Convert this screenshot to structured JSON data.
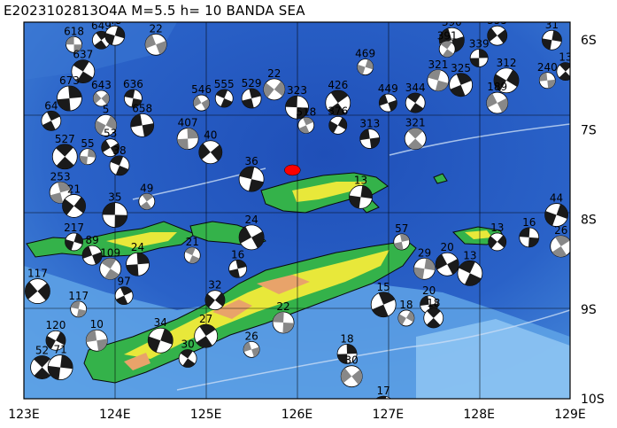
{
  "header": {
    "title": "E2023102813O4A M=5.5 h= 10 BANDA SEA"
  },
  "map": {
    "region": "BANDA SEA",
    "lon_range": [
      123,
      129
    ],
    "lat_range": [
      -10,
      -5.8
    ],
    "x_ticks": [
      {
        "lon": 123,
        "label": "123E"
      },
      {
        "lon": 124,
        "label": "124E"
      },
      {
        "lon": 125,
        "label": "125E"
      },
      {
        "lon": 126,
        "label": "126E"
      },
      {
        "lon": 127,
        "label": "127E"
      },
      {
        "lon": 128,
        "label": "128E"
      },
      {
        "lon": 129,
        "label": "129E"
      }
    ],
    "y_ticks": [
      {
        "lat": -6,
        "label": "6S"
      },
      {
        "lat": -7,
        "label": "7S"
      },
      {
        "lat": -8,
        "label": "8S"
      },
      {
        "lat": -9,
        "label": "9S"
      },
      {
        "lat": -10,
        "label": "10S"
      }
    ],
    "colors": {
      "deep_sea": "#1f4fb8",
      "mid_sea": "#3f82d8",
      "shallow_sea": "#7fb8ee",
      "land_low": "#34b24a",
      "land_mid": "#e8e83a",
      "land_high": "#e8a36a",
      "epicenter": "#ff0000"
    },
    "epicenter": {
      "lon": 125.95,
      "lat": -7.45
    },
    "mechanisms": [
      {
        "lon": 123.55,
        "lat": -6.05,
        "depth": "618"
      },
      {
        "lon": 123.85,
        "lat": -6.0,
        "depth": "649"
      },
      {
        "lon": 124.0,
        "lat": -5.95,
        "depth": "48"
      },
      {
        "lon": 124.45,
        "lat": -6.05,
        "depth": "22"
      },
      {
        "lon": 123.65,
        "lat": -6.35,
        "depth": "637"
      },
      {
        "lon": 123.5,
        "lat": -6.65,
        "depth": "673"
      },
      {
        "lon": 123.85,
        "lat": -6.65,
        "depth": "643"
      },
      {
        "lon": 124.2,
        "lat": -6.65,
        "depth": "636"
      },
      {
        "lon": 123.3,
        "lat": -6.9,
        "depth": "64"
      },
      {
        "lon": 123.9,
        "lat": -6.95,
        "depth": "5"
      },
      {
        "lon": 124.3,
        "lat": -6.95,
        "depth": "658"
      },
      {
        "lon": 123.45,
        "lat": -7.3,
        "depth": "527"
      },
      {
        "lon": 123.7,
        "lat": -7.3,
        "depth": "55"
      },
      {
        "lon": 123.95,
        "lat": -7.2,
        "depth": "53"
      },
      {
        "lon": 124.05,
        "lat": -7.4,
        "depth": "38"
      },
      {
        "lon": 123.4,
        "lat": -7.7,
        "depth": "253"
      },
      {
        "lon": 123.55,
        "lat": -7.85,
        "depth": "21"
      },
      {
        "lon": 124.0,
        "lat": -7.95,
        "depth": "35"
      },
      {
        "lon": 124.35,
        "lat": -7.8,
        "depth": "49"
      },
      {
        "lon": 123.55,
        "lat": -8.25,
        "depth": "217"
      },
      {
        "lon": 123.75,
        "lat": -8.4,
        "depth": "89"
      },
      {
        "lon": 123.95,
        "lat": -8.55,
        "depth": "109"
      },
      {
        "lon": 124.25,
        "lat": -8.5,
        "depth": "24"
      },
      {
        "lon": 123.15,
        "lat": -8.8,
        "depth": "117"
      },
      {
        "lon": 123.6,
        "lat": -9.0,
        "depth": "117"
      },
      {
        "lon": 124.1,
        "lat": -8.85,
        "depth": "97"
      },
      {
        "lon": 123.35,
        "lat": -9.35,
        "depth": "120"
      },
      {
        "lon": 123.8,
        "lat": -9.35,
        "depth": "10"
      },
      {
        "lon": 123.2,
        "lat": -9.65,
        "depth": "52"
      },
      {
        "lon": 123.4,
        "lat": -9.65,
        "depth": "71"
      },
      {
        "lon": 124.95,
        "lat": -6.7,
        "depth": "546"
      },
      {
        "lon": 125.2,
        "lat": -6.65,
        "depth": "555"
      },
      {
        "lon": 125.5,
        "lat": -6.65,
        "depth": "529"
      },
      {
        "lon": 125.75,
        "lat": -6.55,
        "depth": "22"
      },
      {
        "lon": 126.0,
        "lat": -6.75,
        "depth": "323"
      },
      {
        "lon": 126.45,
        "lat": -6.7,
        "depth": "426"
      },
      {
        "lon": 126.75,
        "lat": -6.3,
        "depth": "469"
      },
      {
        "lon": 127.0,
        "lat": -6.7,
        "depth": "449"
      },
      {
        "lon": 127.3,
        "lat": -6.7,
        "depth": "344"
      },
      {
        "lon": 124.8,
        "lat": -7.1,
        "depth": "407"
      },
      {
        "lon": 125.05,
        "lat": -7.25,
        "depth": "40"
      },
      {
        "lon": 125.5,
        "lat": -7.55,
        "depth": "36"
      },
      {
        "lon": 126.1,
        "lat": -6.95,
        "depth": "518"
      },
      {
        "lon": 126.45,
        "lat": -6.95,
        "depth": "376"
      },
      {
        "lon": 126.8,
        "lat": -7.1,
        "depth": "313"
      },
      {
        "lon": 127.3,
        "lat": -7.1,
        "depth": "321"
      },
      {
        "lon": 126.7,
        "lat": -7.75,
        "depth": "13"
      },
      {
        "lon": 125.5,
        "lat": -8.2,
        "depth": "24"
      },
      {
        "lon": 124.85,
        "lat": -8.4,
        "depth": "21"
      },
      {
        "lon": 125.35,
        "lat": -8.55,
        "depth": "16"
      },
      {
        "lon": 125.1,
        "lat": -8.9,
        "depth": "32"
      },
      {
        "lon": 125.85,
        "lat": -9.15,
        "depth": "22"
      },
      {
        "lon": 125.0,
        "lat": -9.3,
        "depth": "27"
      },
      {
        "lon": 124.5,
        "lat": -9.35,
        "depth": "34"
      },
      {
        "lon": 125.5,
        "lat": -9.45,
        "depth": "26"
      },
      {
        "lon": 124.8,
        "lat": -9.55,
        "depth": "30"
      },
      {
        "lon": 126.55,
        "lat": -9.5,
        "depth": "18"
      },
      {
        "lon": 126.6,
        "lat": -9.75,
        "depth": "30"
      },
      {
        "lon": 126.95,
        "lat": -10.1,
        "depth": "17"
      },
      {
        "lon": 126.95,
        "lat": -8.95,
        "depth": "15"
      },
      {
        "lon": 127.2,
        "lat": -9.1,
        "depth": "18"
      },
      {
        "lon": 127.45,
        "lat": -8.95,
        "depth": "20"
      },
      {
        "lon": 127.5,
        "lat": -9.1,
        "depth": "18"
      },
      {
        "lon": 127.4,
        "lat": -8.55,
        "depth": "29"
      },
      {
        "lon": 127.65,
        "lat": -8.5,
        "depth": "20"
      },
      {
        "lon": 127.9,
        "lat": -8.6,
        "depth": "13"
      },
      {
        "lon": 127.15,
        "lat": -8.25,
        "depth": "57"
      },
      {
        "lon": 128.2,
        "lat": -8.25,
        "depth": "13"
      },
      {
        "lon": 128.55,
        "lat": -8.2,
        "depth": "16"
      },
      {
        "lon": 128.9,
        "lat": -8.3,
        "depth": "26"
      },
      {
        "lon": 128.85,
        "lat": -7.95,
        "depth": "44"
      },
      {
        "lon": 127.7,
        "lat": -6.0,
        "depth": "390"
      },
      {
        "lon": 127.65,
        "lat": -6.1,
        "depth": "391"
      },
      {
        "lon": 128.0,
        "lat": -6.2,
        "depth": "339"
      },
      {
        "lon": 128.2,
        "lat": -5.95,
        "depth": "355"
      },
      {
        "lon": 127.55,
        "lat": -6.45,
        "depth": "321"
      },
      {
        "lon": 127.8,
        "lat": -6.5,
        "depth": "325"
      },
      {
        "lon": 128.3,
        "lat": -6.45,
        "depth": "312"
      },
      {
        "lon": 128.75,
        "lat": -6.45,
        "depth": "240"
      },
      {
        "lon": 128.95,
        "lat": -6.35,
        "depth": "13"
      },
      {
        "lon": 128.8,
        "lat": -6.0,
        "depth": "31"
      },
      {
        "lon": 128.2,
        "lat": -6.7,
        "depth": "189"
      }
    ]
  }
}
